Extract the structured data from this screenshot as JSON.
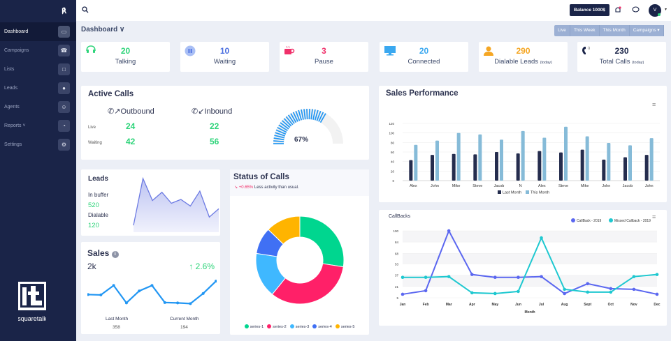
{
  "sidebar": {
    "items": [
      {
        "label": "Dashboard",
        "icon": "monitor-icon",
        "active": true
      },
      {
        "label": "Campaigns",
        "icon": "phone-icon"
      },
      {
        "label": "Lists",
        "icon": "file-icon"
      },
      {
        "label": "Leads",
        "icon": "globe-icon"
      },
      {
        "label": "Agents",
        "icon": "user-icon"
      },
      {
        "label": "Reports ˅",
        "icon": "pie-icon"
      },
      {
        "label": "Settings",
        "icon": "gear-icon"
      }
    ],
    "logo_text": "squaretalk"
  },
  "topbar": {
    "balance": "Balance 1000$",
    "avatar": "V"
  },
  "page": {
    "title": "Dashboard ∨",
    "filters": [
      "Live",
      "This Week",
      "This Month",
      "Campaigns ▾"
    ]
  },
  "stats": [
    {
      "value": "20",
      "label": "Talking",
      "sub": "",
      "color": "#2ed47a"
    },
    {
      "value": "10",
      "label": "Waiting",
      "sub": "",
      "color": "#4a6ee0"
    },
    {
      "value": "3",
      "label": "Pause",
      "sub": "",
      "color": "#f0306a"
    },
    {
      "value": "20",
      "label": "Connected",
      "sub": "",
      "color": "#3aa8f0"
    },
    {
      "value": "290",
      "label": "Dialable Leads ",
      "sub": "(today)",
      "color": "#f5a623"
    },
    {
      "value": "230",
      "label": "Total Calls ",
      "sub": "(today)",
      "color": "#1a2448"
    }
  ],
  "active_calls": {
    "title": "Active Calls",
    "outbound": "Outbound",
    "inbound": "Inbound",
    "live_label": "Live",
    "waiting_label": "Waiting",
    "outbound_live": "24",
    "outbound_waiting": "42",
    "inbound_live": "22",
    "inbound_waiting": "56",
    "gauge_percent": 67,
    "gauge_label": "67%"
  },
  "leads": {
    "title": "Leads",
    "buffer_label": "In buffer",
    "buffer": "520",
    "dialable_label": "Dialable",
    "dialable": "120",
    "spark": [
      10,
      95,
      55,
      70,
      50,
      57,
      45,
      72,
      25,
      40
    ]
  },
  "sales": {
    "title": "Sales",
    "value": "2k",
    "change": "↑ 2.6%",
    "last_label": "Last Month",
    "last": "358",
    "current_label": "Current Month",
    "current": "194",
    "spark": [
      55,
      54,
      80,
      32,
      65,
      80,
      33,
      32,
      30,
      58,
      92
    ]
  },
  "status_calls": {
    "title": "Status of Calls",
    "delta": "↘ +0.65%",
    "note": " Less activity than usual."
  },
  "chart_data": [
    {
      "type": "bar",
      "title": "Sales Performance",
      "categories": [
        "Alex",
        "John",
        "Mike",
        "Steve",
        "Jacob",
        "N",
        "Alex",
        "Steve",
        "Mike",
        "John",
        "Jacob",
        "John"
      ],
      "series": [
        {
          "name": "Last Month",
          "color": "#252d4e",
          "values": [
            43,
            54,
            56,
            55,
            60,
            57,
            62,
            59,
            65,
            44,
            49,
            54
          ]
        },
        {
          "name": "This Month",
          "color": "#86bbd8",
          "values": [
            75,
            84,
            100,
            97,
            86,
            104,
            90,
            113,
            93,
            79,
            74,
            89
          ]
        }
      ],
      "ylim": [
        0,
        120
      ],
      "yticks": [
        0,
        20,
        40,
        60,
        80,
        100,
        120
      ],
      "legend": "bottom"
    },
    {
      "type": "line",
      "title": "CallBacks",
      "xlabel": "Month",
      "categories": [
        "Jan",
        "Feb",
        "Mar",
        "Apr",
        "May",
        "Jun",
        "Jul",
        "Aug",
        "Sept",
        "Oct",
        "Nov",
        "Dec"
      ],
      "series": [
        {
          "name": "CallBack - 2019",
          "color": "#5b67f0",
          "values": [
            10,
            15,
            100,
            38,
            34,
            34,
            35,
            11,
            25,
            18,
            17,
            10
          ]
        },
        {
          "name": "Missed Callback - 2019",
          "color": "#1ec8d0",
          "values": [
            34,
            34,
            35,
            12,
            11,
            14,
            90,
            17,
            13,
            13,
            35,
            38
          ]
        }
      ],
      "ylim": [
        5,
        100
      ],
      "yticks": [
        5,
        21,
        37,
        53,
        68,
        84,
        100
      ],
      "legend": "top-right"
    },
    {
      "type": "pie",
      "title": "Status of Calls",
      "categories": [
        "series-1",
        "series-2",
        "series-3",
        "series-4",
        "series-5"
      ],
      "values": [
        28,
        34,
        17,
        10,
        13
      ],
      "colors": [
        "#00d68f",
        "#ff2068",
        "#3fb8ff",
        "#4070f4",
        "#ffb400"
      ],
      "legend": "bottom"
    }
  ]
}
